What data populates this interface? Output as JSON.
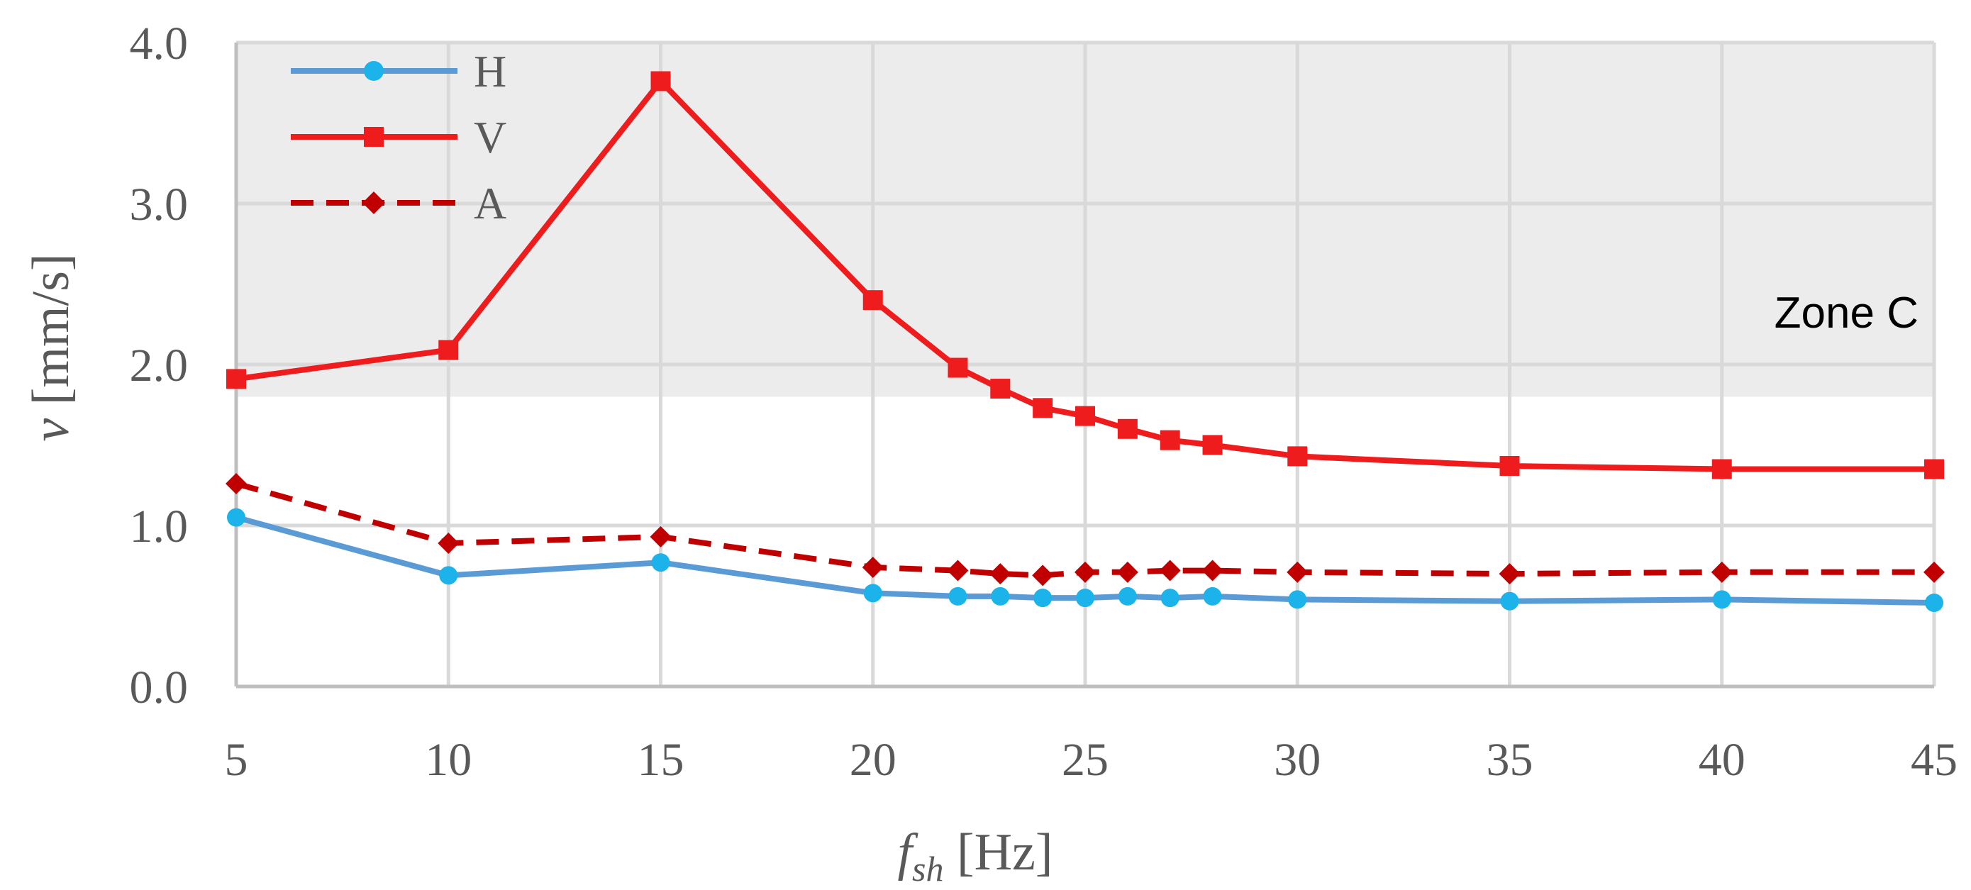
{
  "colors": {
    "H": "#5b9bd5",
    "H_marker": "#1cb3ea",
    "V": "#ee1c1c",
    "A": "#c00000",
    "zone_band": "#ececec",
    "grid": "#d9d9d9",
    "text": "#595959"
  },
  "chart_data": {
    "type": "line",
    "title": "",
    "xlabel": {
      "main": "f",
      "sub": "sh",
      "unit": " [Hz]"
    },
    "ylabel": {
      "main": "v",
      "unit": " [mm/s]"
    },
    "xlim": [
      5,
      45
    ],
    "ylim": [
      0,
      4
    ],
    "x_ticks": [
      5,
      10,
      15,
      20,
      25,
      30,
      35,
      40,
      45
    ],
    "x_tick_labels": [
      "5",
      "10",
      "15",
      "20",
      "25",
      "30",
      "35",
      "40",
      "45"
    ],
    "y_ticks": [
      0,
      1,
      2,
      3,
      4
    ],
    "y_tick_labels": [
      "0.0",
      "1.0",
      "2.0",
      "3.0",
      "4.0"
    ],
    "grid": true,
    "legend_position": "top-left",
    "zone": {
      "label": "Zone C",
      "y_from": 1.8,
      "y_to": 4.0
    },
    "x": [
      5,
      10,
      15,
      20,
      22,
      23,
      24,
      25,
      26,
      27,
      28,
      30,
      35,
      40,
      45
    ],
    "series": [
      {
        "name": "H",
        "marker": "circle",
        "dash": "solid",
        "values": [
          1.05,
          0.69,
          0.77,
          0.58,
          0.56,
          0.56,
          0.55,
          0.55,
          0.56,
          0.55,
          0.56,
          0.54,
          0.53,
          0.54,
          0.52
        ]
      },
      {
        "name": "V",
        "marker": "square",
        "dash": "solid",
        "values": [
          1.91,
          2.09,
          3.76,
          2.4,
          1.98,
          1.85,
          1.73,
          1.68,
          1.6,
          1.53,
          1.5,
          1.43,
          1.37,
          1.35,
          1.35
        ]
      },
      {
        "name": "A",
        "marker": "diamond",
        "dash": "dashed",
        "values": [
          1.26,
          0.89,
          0.93,
          0.74,
          0.72,
          0.7,
          0.69,
          0.71,
          0.71,
          0.72,
          0.72,
          0.71,
          0.7,
          0.71,
          0.71
        ]
      }
    ]
  }
}
